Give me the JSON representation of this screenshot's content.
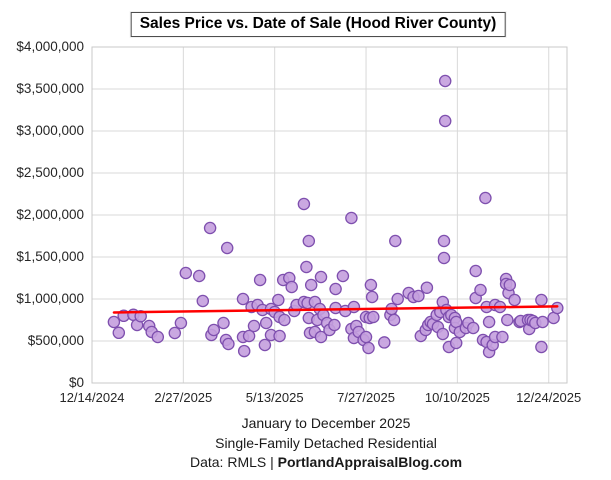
{
  "title": "Sales Price vs. Date of Sale (Hood River County)",
  "footer": {
    "line1": "January to December 2025",
    "line2": "Single-Family Detached Residential",
    "data_prefix": "Data: RMLS | ",
    "data_site": "PortlandAppraisalBlog.com"
  },
  "chart_data": {
    "type": "scatter",
    "title": "Sales Price vs. Date of Sale (Hood River County)",
    "xlabel": "",
    "ylabel": "",
    "grid": true,
    "legend": false,
    "x_axis": {
      "min": "2024-12-14",
      "max": "2026-01-08",
      "tick_dates": [
        "2024-12-14",
        "2025-02-27",
        "2025-05-13",
        "2025-07-27",
        "2025-10-10",
        "2025-12-24"
      ],
      "tick_labels": [
        "12/14/2024",
        "2/27/2025",
        "5/13/2025",
        "7/27/2025",
        "10/10/2025",
        "12/24/2025"
      ]
    },
    "y_axis": {
      "min": 0,
      "max": 4000000,
      "tick_step": 500000,
      "tick_labels": [
        "$0",
        "$500,000",
        "$1,000,000",
        "$1,500,000",
        "$2,000,000",
        "$2,500,000",
        "$3,000,000",
        "$3,500,000",
        "$4,000,000"
      ]
    },
    "colors": {
      "point_fill": "#c49ede",
      "point_stroke": "#7e4fae",
      "gridline": "#d9d9d9",
      "trend": "#ff0000"
    },
    "point_radius": 5.6,
    "trendline": {
      "start_date": "2025-01-01",
      "start_value": 840000,
      "end_date": "2025-12-31",
      "end_value": 912000
    },
    "points": [
      [
        "2025-01-01",
        726000
      ],
      [
        "2025-01-05",
        598000
      ],
      [
        "2025-01-09",
        800000
      ],
      [
        "2025-01-17",
        812000
      ],
      [
        "2025-01-20",
        690000
      ],
      [
        "2025-01-23",
        795000
      ],
      [
        "2025-01-30",
        679000
      ],
      [
        "2025-02-01",
        607000
      ],
      [
        "2025-02-06",
        548000
      ],
      [
        "2025-02-20",
        595000
      ],
      [
        "2025-02-25",
        714000
      ],
      [
        "2025-03-01",
        1310000
      ],
      [
        "2025-03-12",
        1274000
      ],
      [
        "2025-03-15",
        976000
      ],
      [
        "2025-03-21",
        1845000
      ],
      [
        "2025-03-22",
        571000
      ],
      [
        "2025-03-24",
        631000
      ],
      [
        "2025-04-01",
        714000
      ],
      [
        "2025-04-03",
        512000
      ],
      [
        "2025-04-04",
        1607000
      ],
      [
        "2025-04-05",
        464000
      ],
      [
        "2025-04-17",
        548000
      ],
      [
        "2025-04-17",
        1000000
      ],
      [
        "2025-04-18",
        380000
      ],
      [
        "2025-04-22",
        560000
      ],
      [
        "2025-04-24",
        905000
      ],
      [
        "2025-04-26",
        679000
      ],
      [
        "2025-04-29",
        929000
      ],
      [
        "2025-05-01",
        1226000
      ],
      [
        "2025-05-03",
        869000
      ],
      [
        "2025-05-05",
        452000
      ],
      [
        "2025-05-06",
        714000
      ],
      [
        "2025-05-10",
        881000
      ],
      [
        "2025-05-10",
        571000
      ],
      [
        "2025-05-13",
        845000
      ],
      [
        "2025-05-16",
        988000
      ],
      [
        "2025-05-17",
        786000
      ],
      [
        "2025-05-17",
        560000
      ],
      [
        "2025-05-20",
        1226000
      ],
      [
        "2025-05-21",
        750000
      ],
      [
        "2025-05-25",
        1250000
      ],
      [
        "2025-05-27",
        1143000
      ],
      [
        "2025-05-29",
        857000
      ],
      [
        "2025-05-31",
        929000
      ],
      [
        "2025-06-06",
        2131000
      ],
      [
        "2025-06-06",
        964000
      ],
      [
        "2025-06-08",
        1381000
      ],
      [
        "2025-06-09",
        952000
      ],
      [
        "2025-06-10",
        1690000
      ],
      [
        "2025-06-10",
        774000
      ],
      [
        "2025-06-11",
        595000
      ],
      [
        "2025-06-12",
        1167000
      ],
      [
        "2025-06-15",
        964000
      ],
      [
        "2025-06-15",
        607000
      ],
      [
        "2025-06-17",
        750000
      ],
      [
        "2025-06-19",
        881000
      ],
      [
        "2025-06-20",
        1262000
      ],
      [
        "2025-06-20",
        548000
      ],
      [
        "2025-06-22",
        810000
      ],
      [
        "2025-06-25",
        714000
      ],
      [
        "2025-06-27",
        631000
      ],
      [
        "2025-07-01",
        690000
      ],
      [
        "2025-07-02",
        1119000
      ],
      [
        "2025-07-02",
        893000
      ],
      [
        "2025-07-08",
        1274000
      ],
      [
        "2025-07-10",
        857000
      ],
      [
        "2025-07-15",
        1964000
      ],
      [
        "2025-07-15",
        643000
      ],
      [
        "2025-07-17",
        905000
      ],
      [
        "2025-07-17",
        536000
      ],
      [
        "2025-07-19",
        679000
      ],
      [
        "2025-07-21",
        607000
      ],
      [
        "2025-07-25",
        512000
      ],
      [
        "2025-07-27",
        786000
      ],
      [
        "2025-07-27",
        548000
      ],
      [
        "2025-07-29",
        417000
      ],
      [
        "2025-07-30",
        774000
      ],
      [
        "2025-07-31",
        1167000
      ],
      [
        "2025-08-01",
        1024000
      ],
      [
        "2025-08-02",
        786000
      ],
      [
        "2025-08-11",
        483000
      ],
      [
        "2025-08-16",
        810000
      ],
      [
        "2025-08-17",
        881000
      ],
      [
        "2025-08-19",
        750000
      ],
      [
        "2025-08-20",
        1690000
      ],
      [
        "2025-08-22",
        1000000
      ],
      [
        "2025-08-31",
        1071000
      ],
      [
        "2025-09-04",
        1024000
      ],
      [
        "2025-09-08",
        1036000
      ],
      [
        "2025-09-10",
        560000
      ],
      [
        "2025-09-14",
        631000
      ],
      [
        "2025-09-15",
        1135000
      ],
      [
        "2025-09-16",
        690000
      ],
      [
        "2025-09-18",
        726000
      ],
      [
        "2025-09-20",
        702000
      ],
      [
        "2025-09-23",
        810000
      ],
      [
        "2025-09-24",
        667000
      ],
      [
        "2025-09-26",
        845000
      ],
      [
        "2025-09-28",
        964000
      ],
      [
        "2025-09-28",
        583000
      ],
      [
        "2025-09-29",
        1488000
      ],
      [
        "2025-09-29",
        1690000
      ],
      [
        "2025-09-30",
        3595000
      ],
      [
        "2025-09-30",
        3119000
      ],
      [
        "2025-10-01",
        869000
      ],
      [
        "2025-10-03",
        786000
      ],
      [
        "2025-10-03",
        429000
      ],
      [
        "2025-10-05",
        810000
      ],
      [
        "2025-10-08",
        774000
      ],
      [
        "2025-10-08",
        655000
      ],
      [
        "2025-10-09",
        726000
      ],
      [
        "2025-10-09",
        476000
      ],
      [
        "2025-10-12",
        607000
      ],
      [
        "2025-10-17",
        655000
      ],
      [
        "2025-10-19",
        714000
      ],
      [
        "2025-10-23",
        655000
      ],
      [
        "2025-10-25",
        1333000
      ],
      [
        "2025-10-25",
        1012000
      ],
      [
        "2025-10-29",
        1107000
      ],
      [
        "2025-10-31",
        512000
      ],
      [
        "2025-11-02",
        2202000
      ],
      [
        "2025-11-03",
        905000
      ],
      [
        "2025-11-03",
        488000
      ],
      [
        "2025-11-05",
        726000
      ],
      [
        "2025-11-05",
        369000
      ],
      [
        "2025-11-08",
        452000
      ],
      [
        "2025-11-10",
        929000
      ],
      [
        "2025-11-10",
        548000
      ],
      [
        "2025-11-14",
        905000
      ],
      [
        "2025-11-16",
        548000
      ],
      [
        "2025-11-19",
        1238000
      ],
      [
        "2025-11-19",
        1179000
      ],
      [
        "2025-11-20",
        750000
      ],
      [
        "2025-11-21",
        1071000
      ],
      [
        "2025-11-22",
        1167000
      ],
      [
        "2025-11-26",
        988000
      ],
      [
        "2025-11-30",
        726000
      ],
      [
        "2025-12-01",
        738000
      ],
      [
        "2025-12-07",
        750000
      ],
      [
        "2025-12-08",
        643000
      ],
      [
        "2025-12-09",
        750000
      ],
      [
        "2025-12-11",
        738000
      ],
      [
        "2025-12-13",
        714000
      ],
      [
        "2025-12-18",
        988000
      ],
      [
        "2025-12-18",
        429000
      ],
      [
        "2025-12-19",
        726000
      ],
      [
        "2025-12-28",
        774000
      ],
      [
        "2025-12-31",
        893000
      ]
    ]
  }
}
